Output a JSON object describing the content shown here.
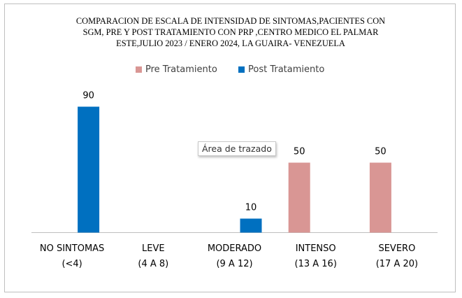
{
  "chart_data": {
    "type": "bar",
    "title_lines": [
      "COMPARACION DE ESCALA DE INTENSIDAD DE SINTOMAS,PACIENTES CON",
      "SGM, PRE Y POST TRATAMIENTO  CON PRP ,CENTRO MEDICO EL PALMAR",
      "ESTE,JULIO  2023 / ENERO 2024, LA GUAIRA- VENEZUELA"
    ],
    "categories": [
      [
        "NO SINTOMAS",
        "(<4)"
      ],
      [
        "LEVE",
        "(4 A 8)"
      ],
      [
        "MODERADO",
        "(9 A 12)"
      ],
      [
        "INTENSO",
        "(13 A 16)"
      ],
      [
        "SEVERO",
        "(17 A 20)"
      ]
    ],
    "series": [
      {
        "name": "Pre Tratamiento",
        "color": "#d99694",
        "values": [
          null,
          null,
          null,
          50,
          50
        ]
      },
      {
        "name": "Post Tratamiento",
        "color": "#0070c0",
        "values": [
          90,
          null,
          10,
          null,
          null
        ]
      }
    ],
    "data_labels": true,
    "ylim": [
      0,
      100
    ],
    "grid": false,
    "legend_position": "top",
    "xlabel": "",
    "ylabel": ""
  },
  "tooltip": {
    "text": "Área de trazado"
  },
  "colors": {
    "axis": "#bfbfbf",
    "frame": "#bfbfbf"
  }
}
